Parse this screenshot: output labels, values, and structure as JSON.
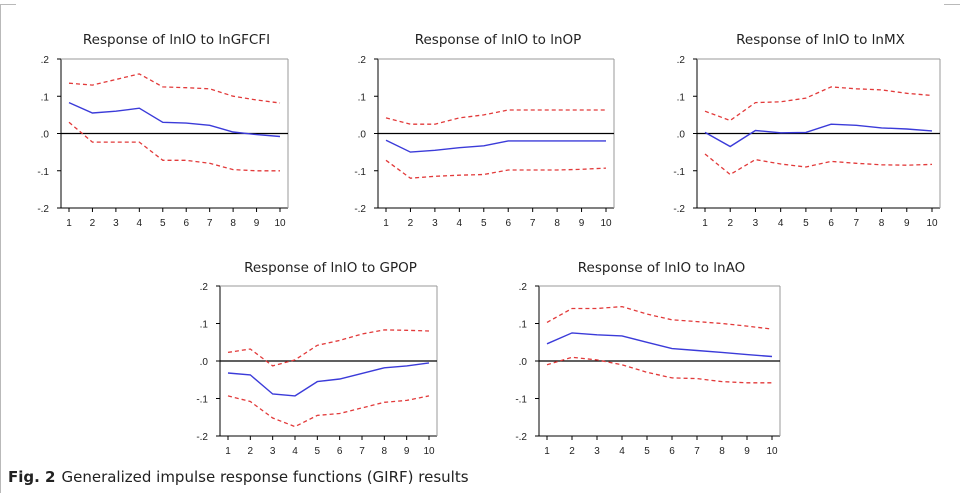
{
  "colors": {
    "response": "#3b3bd9",
    "band": "#e23a3a",
    "axis": "#000000",
    "text": "#222222"
  },
  "figure": {
    "label": "Fig. 2",
    "caption": "Generalized impulse response functions (GIRF) results"
  },
  "chart_data": [
    {
      "type": "line",
      "title": "Response of lnIO to lnGFCFI",
      "x": [
        1,
        2,
        3,
        4,
        5,
        6,
        7,
        8,
        9,
        10
      ],
      "ylim": [
        -0.2,
        0.2
      ],
      "yticks": [
        ".2",
        ".1",
        ".0",
        "-.1",
        "-.2"
      ],
      "xticks": [
        "1",
        "2",
        "3",
        "4",
        "5",
        "6",
        "7",
        "8",
        "9",
        "10"
      ],
      "series": [
        {
          "role": "response",
          "values": [
            0.083,
            0.055,
            0.06,
            0.068,
            0.03,
            0.028,
            0.022,
            0.004,
            -0.003,
            -0.008
          ]
        },
        {
          "role": "upper",
          "values": [
            0.135,
            0.13,
            0.145,
            0.16,
            0.125,
            0.123,
            0.12,
            0.1,
            0.09,
            0.082
          ]
        },
        {
          "role": "lower",
          "values": [
            0.03,
            -0.023,
            -0.023,
            -0.023,
            -0.072,
            -0.072,
            -0.08,
            -0.097,
            -0.1,
            -0.1
          ]
        }
      ]
    },
    {
      "type": "line",
      "title": "Response of lnIO to lnOP",
      "x": [
        1,
        2,
        3,
        4,
        5,
        6,
        7,
        8,
        9,
        10
      ],
      "ylim": [
        -0.2,
        0.2
      ],
      "yticks": [
        ".2",
        ".1",
        ".0",
        "-.1",
        "-.2"
      ],
      "xticks": [
        "1",
        "2",
        "3",
        "4",
        "5",
        "6",
        "7",
        "8",
        "9",
        "10"
      ],
      "series": [
        {
          "role": "response",
          "values": [
            -0.018,
            -0.05,
            -0.045,
            -0.038,
            -0.033,
            -0.02,
            -0.02,
            -0.02,
            -0.02,
            -0.02
          ]
        },
        {
          "role": "upper",
          "values": [
            0.042,
            0.025,
            0.025,
            0.042,
            0.05,
            0.063,
            0.063,
            0.063,
            0.063,
            0.063
          ]
        },
        {
          "role": "lower",
          "values": [
            -0.072,
            -0.12,
            -0.115,
            -0.112,
            -0.11,
            -0.098,
            -0.098,
            -0.098,
            -0.096,
            -0.093
          ]
        }
      ]
    },
    {
      "type": "line",
      "title": "Response of lnIO to lnMX",
      "x": [
        1,
        2,
        3,
        4,
        5,
        6,
        7,
        8,
        9,
        10
      ],
      "ylim": [
        -0.2,
        0.2
      ],
      "yticks": [
        ".2",
        ".1",
        ".0",
        "-.1",
        "-.2"
      ],
      "xticks": [
        "1",
        "2",
        "3",
        "4",
        "5",
        "6",
        "7",
        "8",
        "9",
        "10"
      ],
      "series": [
        {
          "role": "response",
          "values": [
            0.003,
            -0.035,
            0.008,
            0.002,
            0.003,
            0.025,
            0.022,
            0.015,
            0.012,
            0.007
          ]
        },
        {
          "role": "upper",
          "values": [
            0.06,
            0.035,
            0.083,
            0.085,
            0.095,
            0.125,
            0.12,
            0.117,
            0.108,
            0.102
          ]
        },
        {
          "role": "lower",
          "values": [
            -0.055,
            -0.11,
            -0.07,
            -0.082,
            -0.09,
            -0.075,
            -0.08,
            -0.084,
            -0.085,
            -0.083
          ]
        }
      ]
    },
    {
      "type": "line",
      "title": "Response of lnIO to GPOP",
      "x": [
        1,
        2,
        3,
        4,
        5,
        6,
        7,
        8,
        9,
        10
      ],
      "ylim": [
        -0.2,
        0.2
      ],
      "yticks": [
        ".2",
        ".1",
        ".0",
        "-.1",
        "-.2"
      ],
      "xticks": [
        "1",
        "2",
        "3",
        "4",
        "5",
        "6",
        "7",
        "8",
        "9",
        "10"
      ],
      "series": [
        {
          "role": "response",
          "values": [
            -0.032,
            -0.037,
            -0.088,
            -0.093,
            -0.055,
            -0.048,
            -0.033,
            -0.018,
            -0.013,
            -0.005
          ]
        },
        {
          "role": "upper",
          "values": [
            0.023,
            0.032,
            -0.013,
            0.003,
            0.042,
            0.055,
            0.072,
            0.083,
            0.082,
            0.08
          ]
        },
        {
          "role": "lower",
          "values": [
            -0.093,
            -0.108,
            -0.152,
            -0.175,
            -0.145,
            -0.14,
            -0.125,
            -0.11,
            -0.105,
            -0.093
          ]
        }
      ]
    },
    {
      "type": "line",
      "title": "Response of lnIO to lnAO",
      "x": [
        1,
        2,
        3,
        4,
        5,
        6,
        7,
        8,
        9,
        10
      ],
      "ylim": [
        -0.2,
        0.2
      ],
      "yticks": [
        ".2",
        ".1",
        ".0",
        "-.1",
        "-.2"
      ],
      "xticks": [
        "1",
        "2",
        "3",
        "4",
        "5",
        "6",
        "7",
        "8",
        "9",
        "10"
      ],
      "series": [
        {
          "role": "response",
          "values": [
            0.046,
            0.075,
            0.07,
            0.067,
            0.05,
            0.033,
            0.028,
            0.023,
            0.017,
            0.012
          ]
        },
        {
          "role": "upper",
          "values": [
            0.103,
            0.14,
            0.14,
            0.145,
            0.125,
            0.11,
            0.105,
            0.1,
            0.093,
            0.085
          ]
        },
        {
          "role": "lower",
          "values": [
            -0.01,
            0.01,
            0.003,
            -0.01,
            -0.03,
            -0.045,
            -0.047,
            -0.055,
            -0.058,
            -0.058
          ]
        }
      ]
    }
  ]
}
